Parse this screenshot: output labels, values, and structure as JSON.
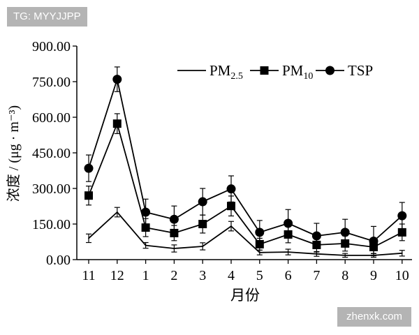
{
  "watermarks": {
    "top_left": "TG: MYYJJPP",
    "bottom_right": "zhenxk.com"
  },
  "chart_data": {
    "type": "line",
    "title": "",
    "xlabel": "月份",
    "ylabel": "浓度 / (μg · m⁻³)",
    "categories": [
      "11",
      "12",
      "1",
      "2",
      "3",
      "4",
      "5",
      "6",
      "7",
      "8",
      "9",
      "10"
    ],
    "ylim": [
      0,
      900
    ],
    "yticks": [
      "0.00",
      "150.00",
      "300.00",
      "450.00",
      "600.00",
      "750.00",
      "900.00"
    ],
    "grid": false,
    "legend": "top-right",
    "error_bars": true,
    "series": [
      {
        "name": "PM2.5",
        "subscript": "2.5",
        "marker": "none",
        "color": "#000000",
        "values": [
          90,
          200,
          60,
          47,
          56,
          141,
          30,
          32,
          24,
          18,
          18,
          27
        ],
        "errors": [
          18,
          20,
          12,
          15,
          15,
          20,
          10,
          12,
          10,
          8,
          8,
          12
        ]
      },
      {
        "name": "PM10",
        "subscript": "10",
        "marker": "square",
        "color": "#000000",
        "values": [
          270,
          573,
          135,
          112,
          150,
          226,
          65,
          106,
          62,
          68,
          53,
          115
        ],
        "errors": [
          40,
          42,
          38,
          32,
          38,
          42,
          25,
          35,
          30,
          32,
          28,
          35
        ]
      },
      {
        "name": "TSP",
        "subscript": "",
        "marker": "circle",
        "color": "#000000",
        "values": [
          385,
          760,
          200,
          170,
          244,
          298,
          115,
          153,
          100,
          115,
          78,
          185
        ],
        "errors": [
          56,
          52,
          55,
          56,
          56,
          55,
          50,
          58,
          53,
          55,
          62,
          56
        ]
      }
    ]
  }
}
